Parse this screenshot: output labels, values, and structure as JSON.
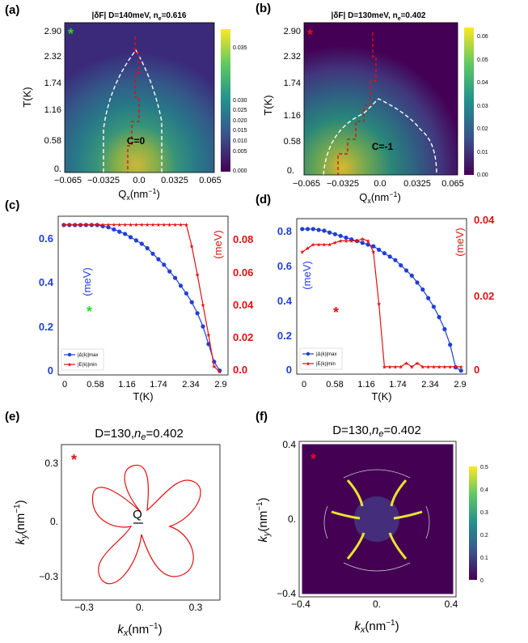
{
  "panels": {
    "a": {
      "letter": "(a)",
      "title": "|δF| D=140meV, n",
      "title_sub": "e",
      "title_tail": "=0.616",
      "xlabel": "Q",
      "xlabel_sub": "x",
      "xlabel_unit": "(nm",
      "xlabel_sup": "−1",
      "xlabel_close": ")",
      "ylabel": "T(K)",
      "xticks": [
        "−0.065",
        "−0.0325",
        "0.0",
        "0.0325",
        "0.065"
      ],
      "yticks": [
        "2.90",
        "2.32",
        "1.74",
        "1.16",
        "0.58",
        "0."
      ],
      "colorbar_ticks": [
        "0.035",
        "0.030",
        "0.025",
        "0.020",
        "0.015",
        "0.010",
        "0.005",
        "0.000"
      ],
      "annotation": "C=0",
      "marker": "*",
      "marker_color": "#22dd22"
    },
    "b": {
      "letter": "(b)",
      "title": "|δF| D=130meV, n",
      "title_sub": "e",
      "title_tail": "=0.402",
      "xlabel": "Q",
      "xlabel_sub": "x",
      "xlabel_unit": "(nm",
      "xlabel_sup": "−1",
      "xlabel_close": ")",
      "ylabel": "T(K)",
      "xticks": [
        "−0.065",
        "−0.0325",
        "0.0",
        "0.0325",
        "0.065"
      ],
      "yticks": [
        "2.90",
        "2.32",
        "1.74",
        "1.16",
        "0.58",
        "0."
      ],
      "colorbar_ticks": [
        "0.06",
        "0.05",
        "0.04",
        "0.03",
        "0.02",
        "0.01",
        "0.00"
      ],
      "annotation": "C=-1",
      "marker": "*",
      "marker_color": "#e11111"
    },
    "c": {
      "letter": "(c)",
      "xlabel": "T(K)",
      "ylabel_left": "(meV)",
      "ylabel_right": "(meV)",
      "xticks": [
        "0",
        "0.58",
        "1.16",
        "1.74",
        "2.34",
        "2.9"
      ],
      "yticks_left": [
        "0.6",
        "0.4",
        "0.2",
        "0"
      ],
      "yticks_right": [
        "0.08",
        "0.06",
        "0.04",
        "0.02",
        "0.0"
      ],
      "legend": [
        "|Δ(k)|max",
        "|E(k)|min"
      ],
      "marker": "*",
      "marker_color": "#22dd22"
    },
    "d": {
      "letter": "(d)",
      "xlabel": "T(K)",
      "ylabel_left": "(meV)",
      "ylabel_right": "(meV)",
      "xticks": [
        "0",
        "0.58",
        "1.16",
        "1.74",
        "2.34",
        "2.9"
      ],
      "yticks_left": [
        "0.8",
        "0.6",
        "0.4",
        "0.2",
        "0"
      ],
      "yticks_right": [
        "0.04",
        "0.02",
        "0"
      ],
      "legend": [
        "|Δ(k)|max",
        "|E(k)|min"
      ],
      "marker": "*",
      "marker_color": "#e11111"
    },
    "e": {
      "letter": "(e)",
      "title_pre": "D=130,",
      "title_n": "n",
      "title_sub": "e",
      "title_tail": "=0.402",
      "xlabel": "k",
      "xlabel_sub": "x",
      "xlabel_unit": "(nm",
      "xlabel_sup": "−1",
      "xlabel_close": ")",
      "ylabel": "k",
      "ylabel_sub": "y",
      "ylabel_unit": "(nm",
      "ylabel_sup": "−1",
      "ylabel_close": ")",
      "xticks": [
        "−0.3",
        "0.",
        "0.3"
      ],
      "yticks": [
        "0.3",
        "0.",
        "−0.3"
      ],
      "annotation": "Q",
      "marker": "*",
      "marker_color": "#e11111"
    },
    "f": {
      "letter": "(f)",
      "title_pre": "D=130,",
      "title_n": "n",
      "title_sub": "e",
      "title_tail": "=0.402",
      "xlabel": "k",
      "xlabel_sub": "x",
      "xlabel_unit": "(nm",
      "xlabel_sup": "−1",
      "xlabel_close": ")",
      "ylabel": "k",
      "ylabel_sub": "y",
      "ylabel_unit": "(nm",
      "ylabel_sup": "−1",
      "ylabel_close": ")",
      "xticks": [
        "−0.4",
        "0.",
        "0.4"
      ],
      "yticks": [
        "0.4",
        "0.",
        "−0.4"
      ],
      "colorbar_ticks": [
        "0.5",
        "0.4",
        "0.3",
        "0.2",
        "0.1",
        "0"
      ],
      "marker": "*",
      "marker_color": "#e11111"
    }
  },
  "chart_data": [
    {
      "panel": "c",
      "type": "line",
      "x": [
        0,
        0.1,
        0.2,
        0.3,
        0.4,
        0.5,
        0.6,
        0.7,
        0.8,
        0.9,
        1.0,
        1.1,
        1.2,
        1.3,
        1.4,
        1.5,
        1.6,
        1.7,
        1.8,
        1.9,
        2.0,
        2.1,
        2.2,
        2.3,
        2.4,
        2.5,
        2.6,
        2.7,
        2.8
      ],
      "xlim": [
        -0.1,
        2.95
      ],
      "series": [
        {
          "name": "|Δ(k)|max",
          "axis": "left",
          "color": "#1f3fd6",
          "marker": "circle",
          "values": [
            0.66,
            0.66,
            0.66,
            0.66,
            0.66,
            0.66,
            0.66,
            0.655,
            0.65,
            0.64,
            0.63,
            0.62,
            0.605,
            0.59,
            0.575,
            0.555,
            0.53,
            0.505,
            0.48,
            0.45,
            0.42,
            0.385,
            0.35,
            0.31,
            0.26,
            0.2,
            0.12,
            0.04,
            0.0
          ]
        },
        {
          "name": "|E(k)|min",
          "axis": "right",
          "color": "#e11111",
          "marker": "star",
          "values": [
            0.088,
            0.088,
            0.088,
            0.088,
            0.088,
            0.088,
            0.088,
            0.088,
            0.088,
            0.088,
            0.088,
            0.088,
            0.088,
            0.088,
            0.088,
            0.088,
            0.088,
            0.088,
            0.088,
            0.088,
            0.088,
            0.088,
            0.088,
            0.075,
            0.058,
            0.04,
            0.022,
            0.003,
            0.0
          ]
        }
      ],
      "ylim_left": [
        -0.02,
        0.7
      ],
      "ylim_right": [
        -0.002,
        0.093
      ]
    },
    {
      "panel": "d",
      "type": "line",
      "x": [
        0,
        0.1,
        0.2,
        0.3,
        0.4,
        0.5,
        0.6,
        0.7,
        0.8,
        0.9,
        1.0,
        1.1,
        1.2,
        1.3,
        1.4,
        1.5,
        1.6,
        1.7,
        1.8,
        1.9,
        2.0,
        2.1,
        2.2,
        2.3,
        2.4,
        2.5,
        2.6,
        2.7,
        2.8,
        2.9
      ],
      "xlim": [
        -0.1,
        3.0
      ],
      "series": [
        {
          "name": "|Δ(k)|max",
          "axis": "left",
          "color": "#1f3fd6",
          "marker": "circle",
          "values": [
            0.82,
            0.82,
            0.82,
            0.815,
            0.81,
            0.8,
            0.79,
            0.78,
            0.77,
            0.76,
            0.75,
            0.74,
            0.73,
            0.72,
            0.7,
            0.68,
            0.66,
            0.64,
            0.61,
            0.58,
            0.55,
            0.51,
            0.47,
            0.42,
            0.37,
            0.31,
            0.24,
            0.15,
            0.02,
            0.0
          ]
        },
        {
          "name": "|E(k)|min",
          "axis": "right",
          "color": "#e11111",
          "marker": "star",
          "values": [
            0.031,
            0.032,
            0.033,
            0.033,
            0.033,
            0.033,
            0.0335,
            0.034,
            0.034,
            0.034,
            0.034,
            0.0345,
            0.034,
            0.031,
            0.017,
            0.0,
            0.0,
            0.0,
            0.0,
            0.001,
            0.0,
            0.001,
            0.0,
            0.0,
            0.0,
            0.0,
            0.0,
            0.0,
            0.0,
            0.0
          ]
        }
      ],
      "ylim_left": [
        -0.02,
        0.88
      ],
      "ylim_right": [
        -0.002,
        0.04
      ]
    }
  ]
}
